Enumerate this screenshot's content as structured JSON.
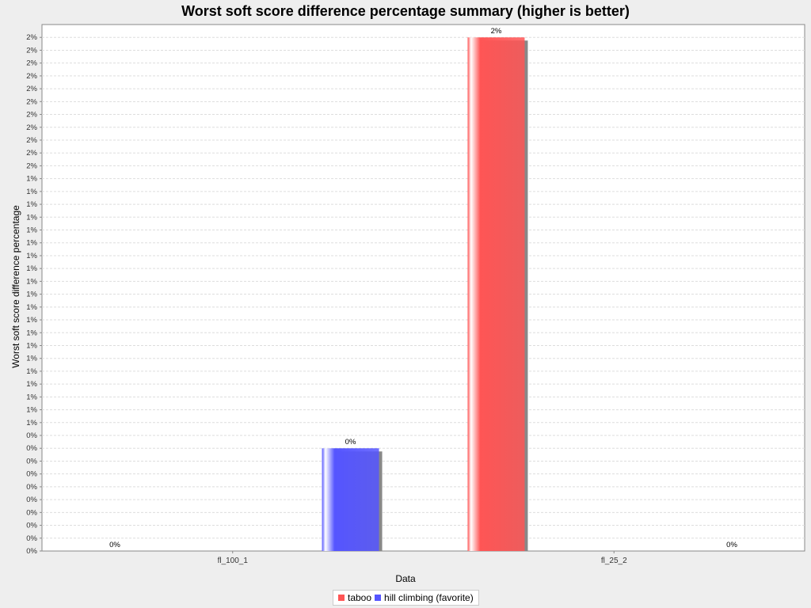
{
  "chart_data": {
    "type": "bar",
    "title": "Worst soft score difference percentage summary (higher is better)",
    "xlabel": "Data",
    "ylabel": "Worst soft score difference percentage",
    "categories": [
      "fl_100_1",
      "fl_25_2"
    ],
    "series": [
      {
        "name": "taboo",
        "color": "#ff5555",
        "values": [
          0.0,
          2.0
        ],
        "value_labels": [
          "0%",
          "2%"
        ]
      },
      {
        "name": "hill climbing (favorite)",
        "color": "#5555ff",
        "values": [
          0.4,
          0.0
        ],
        "value_labels": [
          "0%",
          "0%"
        ]
      }
    ],
    "ylim": [
      0,
      2.05
    ],
    "y_tick_step": 0.05,
    "y_tick_labels": [
      "0%",
      "0%",
      "0%",
      "0%",
      "0%",
      "0%",
      "0%",
      "0%",
      "0%",
      "0%",
      "1%",
      "1%",
      "1%",
      "1%",
      "1%",
      "1%",
      "1%",
      "1%",
      "1%",
      "1%",
      "1%",
      "1%",
      "1%",
      "1%",
      "1%",
      "1%",
      "1%",
      "1%",
      "1%",
      "1%",
      "2%",
      "2%",
      "2%",
      "2%",
      "2%",
      "2%",
      "2%",
      "2%",
      "2%",
      "2%",
      "2%"
    ],
    "grid": true,
    "legend": "bottom"
  }
}
